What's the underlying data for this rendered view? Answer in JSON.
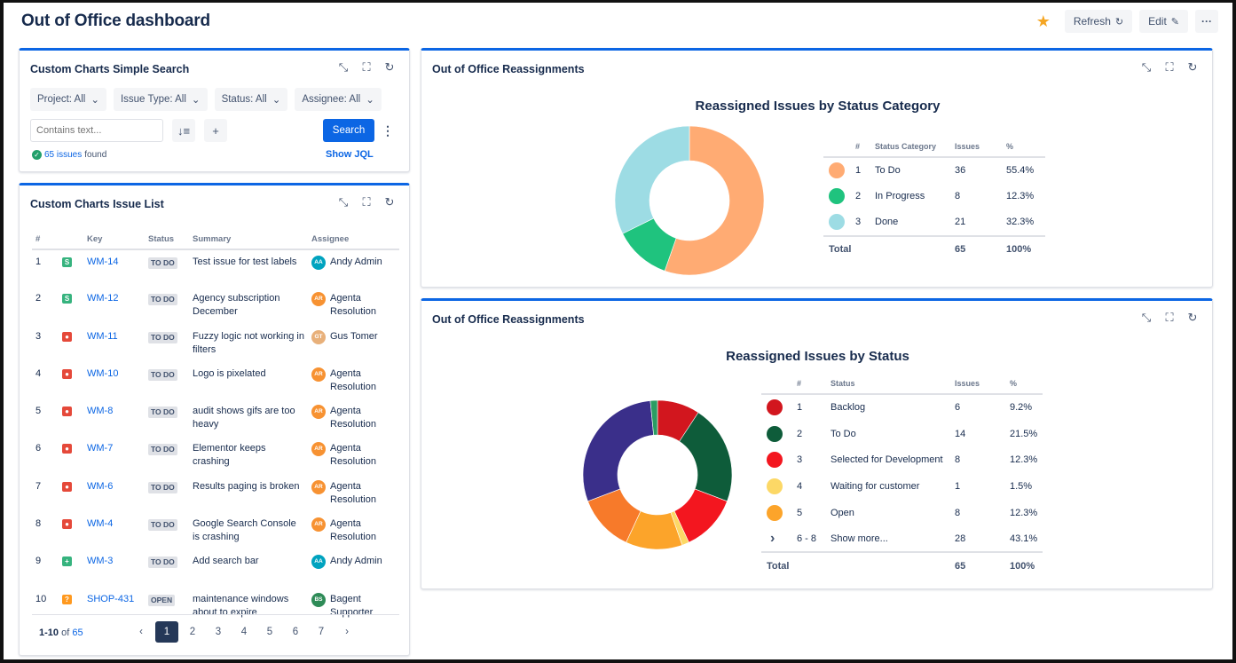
{
  "header": {
    "title": "Out of Office dashboard",
    "refresh_label": "Refresh",
    "edit_label": "Edit",
    "more_label": "···",
    "star_color": "#f5a623"
  },
  "search_gadget": {
    "title": "Custom Charts Simple Search",
    "filters": [
      "Project: All",
      "Issue Type: All",
      "Status: All",
      "Assignee: All"
    ],
    "text_placeholder": "Contains text...",
    "search_label": "Search",
    "found_count": "65 issues",
    "found_suffix": "found",
    "show_jql": "Show JQL"
  },
  "issue_list": {
    "title": "Custom Charts Issue List",
    "columns": [
      "#",
      "",
      "Key",
      "Status",
      "Summary",
      "Assignee"
    ],
    "rows": [
      {
        "n": "1",
        "type": "story",
        "key": "WM-14",
        "status": "TO DO",
        "summary": "Test issue for test labels",
        "assignee": "Andy Admin",
        "initials": "AA",
        "avatar_color": "#00a3bf"
      },
      {
        "n": "2",
        "type": "story",
        "key": "WM-12",
        "status": "TO DO",
        "summary": "Agency subscription December",
        "assignee": "Agenta Resolution",
        "initials": "AR",
        "avatar_color": "#f79232"
      },
      {
        "n": "3",
        "type": "bug",
        "key": "WM-11",
        "status": "TO DO",
        "summary": "Fuzzy logic not working in filters",
        "assignee": "Gus Tomer",
        "initials": "GT",
        "avatar_color": "#e8b07a"
      },
      {
        "n": "4",
        "type": "bug",
        "key": "WM-10",
        "status": "TO DO",
        "summary": "Logo is pixelated",
        "assignee": "Agenta Resolution",
        "initials": "AR",
        "avatar_color": "#f79232"
      },
      {
        "n": "5",
        "type": "bug",
        "key": "WM-8",
        "status": "TO DO",
        "summary": "audit shows gifs are too heavy",
        "assignee": "Agenta Resolution",
        "initials": "AR",
        "avatar_color": "#f79232"
      },
      {
        "n": "6",
        "type": "bug",
        "key": "WM-7",
        "status": "TO DO",
        "summary": "Elementor keeps crashing",
        "assignee": "Agenta Resolution",
        "initials": "AR",
        "avatar_color": "#f79232"
      },
      {
        "n": "7",
        "type": "bug",
        "key": "WM-6",
        "status": "TO DO",
        "summary": "Results paging is broken",
        "assignee": "Agenta Resolution",
        "initials": "AR",
        "avatar_color": "#f79232"
      },
      {
        "n": "8",
        "type": "bug",
        "key": "WM-4",
        "status": "TO DO",
        "summary": "Google Search Console is crashing",
        "assignee": "Agenta Resolution",
        "initials": "AR",
        "avatar_color": "#f79232"
      },
      {
        "n": "9",
        "type": "new",
        "key": "WM-3",
        "status": "TO DO",
        "summary": "Add search bar",
        "assignee": "Andy Admin",
        "initials": "AA",
        "avatar_color": "#00a3bf"
      },
      {
        "n": "10",
        "type": "question",
        "key": "SHOP-431",
        "status": "OPEN",
        "summary": "maintenance windows about to expire",
        "assignee": "Bagent Supporter",
        "initials": "BS",
        "avatar_color": "#2e8b57"
      }
    ],
    "pager_range": "1-10",
    "pager_of": "of",
    "pager_total": "65",
    "pages": [
      "1",
      "2",
      "3",
      "4",
      "5",
      "6",
      "7"
    ],
    "prev": "‹",
    "next": "›"
  },
  "reassign_category": {
    "gadget_title": "Out of Office Reassignments",
    "chart_title": "Reassigned Issues by Status Category",
    "columns": [
      "#",
      "Status Category",
      "Issues",
      "%"
    ],
    "total_label": "Total",
    "total_issues": "65",
    "total_pct": "100%"
  },
  "reassign_status": {
    "gadget_title": "Out of Office Reassignments",
    "chart_title": "Reassigned Issues by Status",
    "columns": [
      "#",
      "Status",
      "Issues",
      "%"
    ],
    "total_label": "Total",
    "total_issues": "65",
    "total_pct": "100%"
  },
  "chart_data": [
    {
      "type": "pie",
      "title": "Reassigned Issues by Status Category",
      "donut": true,
      "slices": [
        {
          "n": "1",
          "label": "To Do",
          "value": 36,
          "pct": "55.4%",
          "color": "#ffab73"
        },
        {
          "n": "2",
          "label": "In Progress",
          "value": 8,
          "pct": "12.3%",
          "color": "#1fc37e"
        },
        {
          "n": "3",
          "label": "Done",
          "value": 21,
          "pct": "32.3%",
          "color": "#9ddce4"
        }
      ]
    },
    {
      "type": "pie",
      "title": "Reassigned Issues by Status",
      "donut": true,
      "slices": [
        {
          "n": "1",
          "label": "Backlog",
          "value": 6,
          "pct": "9.2%",
          "color": "#d2161e",
          "show_dot": true
        },
        {
          "n": "2",
          "label": "To Do",
          "value": 14,
          "pct": "21.5%",
          "color": "#0e5c3a",
          "show_dot": true
        },
        {
          "n": "3",
          "label": "Selected for Development",
          "value": 8,
          "pct": "12.3%",
          "color": "#f3161f",
          "show_dot": true
        },
        {
          "n": "4",
          "label": "Waiting for customer",
          "value": 1,
          "pct": "1.5%",
          "color": "#fcd866",
          "show_dot": true
        },
        {
          "n": "5",
          "label": "Open",
          "value": 8,
          "pct": "12.3%",
          "color": "#fca42a",
          "show_dot": true
        },
        {
          "n": "6 - 8",
          "label": "Show more...",
          "value": 28,
          "pct": "43.1%",
          "color": "#3a2f8a",
          "show_dot": false
        }
      ],
      "hidden_slices": [
        {
          "value": 8,
          "color": "#f77a2a"
        },
        {
          "value": 19,
          "color": "#3a2f8a"
        },
        {
          "value": 1,
          "color": "#2a9d63"
        }
      ]
    }
  ]
}
